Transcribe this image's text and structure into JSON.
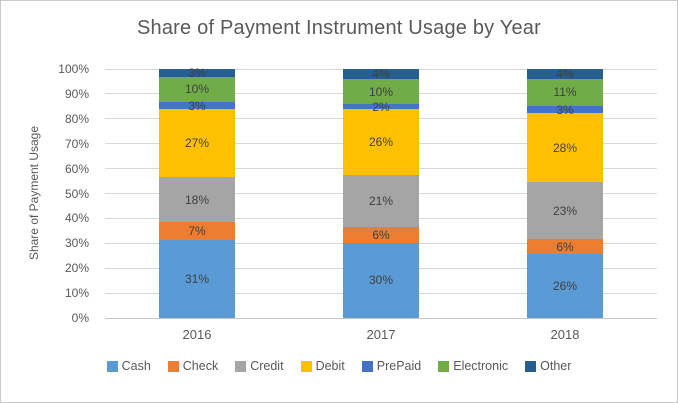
{
  "chart_data": {
    "type": "bar",
    "variant": "stacked-100-percent",
    "title": "Share of Payment Instrument Usage by Year",
    "ylabel": "Share of Payment Usage",
    "xlabel": "",
    "categories": [
      "2016",
      "2017",
      "2018"
    ],
    "series": [
      {
        "name": "Cash",
        "color": "#5B9BD5",
        "values": [
          31,
          30,
          26
        ]
      },
      {
        "name": "Check",
        "color": "#ED7D31",
        "values": [
          7,
          6,
          6
        ]
      },
      {
        "name": "Credit",
        "color": "#A5A5A5",
        "values": [
          18,
          21,
          23
        ]
      },
      {
        "name": "Debit",
        "color": "#FFC000",
        "values": [
          27,
          26,
          28
        ]
      },
      {
        "name": "PrePaid",
        "color": "#4472C4",
        "values": [
          3,
          2,
          3
        ]
      },
      {
        "name": "Electronic",
        "color": "#70AD47",
        "values": [
          10,
          10,
          11
        ]
      },
      {
        "name": "Other",
        "color": "#255E91",
        "values": [
          3,
          4,
          4
        ]
      }
    ],
    "segment_labels": [
      [
        "31%",
        "7%",
        "18%",
        "27%",
        "3%",
        "10%",
        "3%"
      ],
      [
        "30%",
        "6%",
        "21%",
        "26%",
        "2%",
        "10%",
        "4%"
      ],
      [
        "26%",
        "6%",
        "23%",
        "28%",
        "3%",
        "11%",
        "4%"
      ]
    ],
    "y_ticks": [
      "0%",
      "10%",
      "20%",
      "30%",
      "40%",
      "50%",
      "60%",
      "70%",
      "80%",
      "90%",
      "100%"
    ],
    "ylim": [
      0,
      100
    ],
    "grid": true,
    "legend_position": "bottom",
    "style": {
      "grid_color": "#D9D9D9",
      "axis_color": "#C6C6C6",
      "title_color": "#595959",
      "tick_color": "#595959",
      "label_color": "#3F3F3F"
    }
  }
}
